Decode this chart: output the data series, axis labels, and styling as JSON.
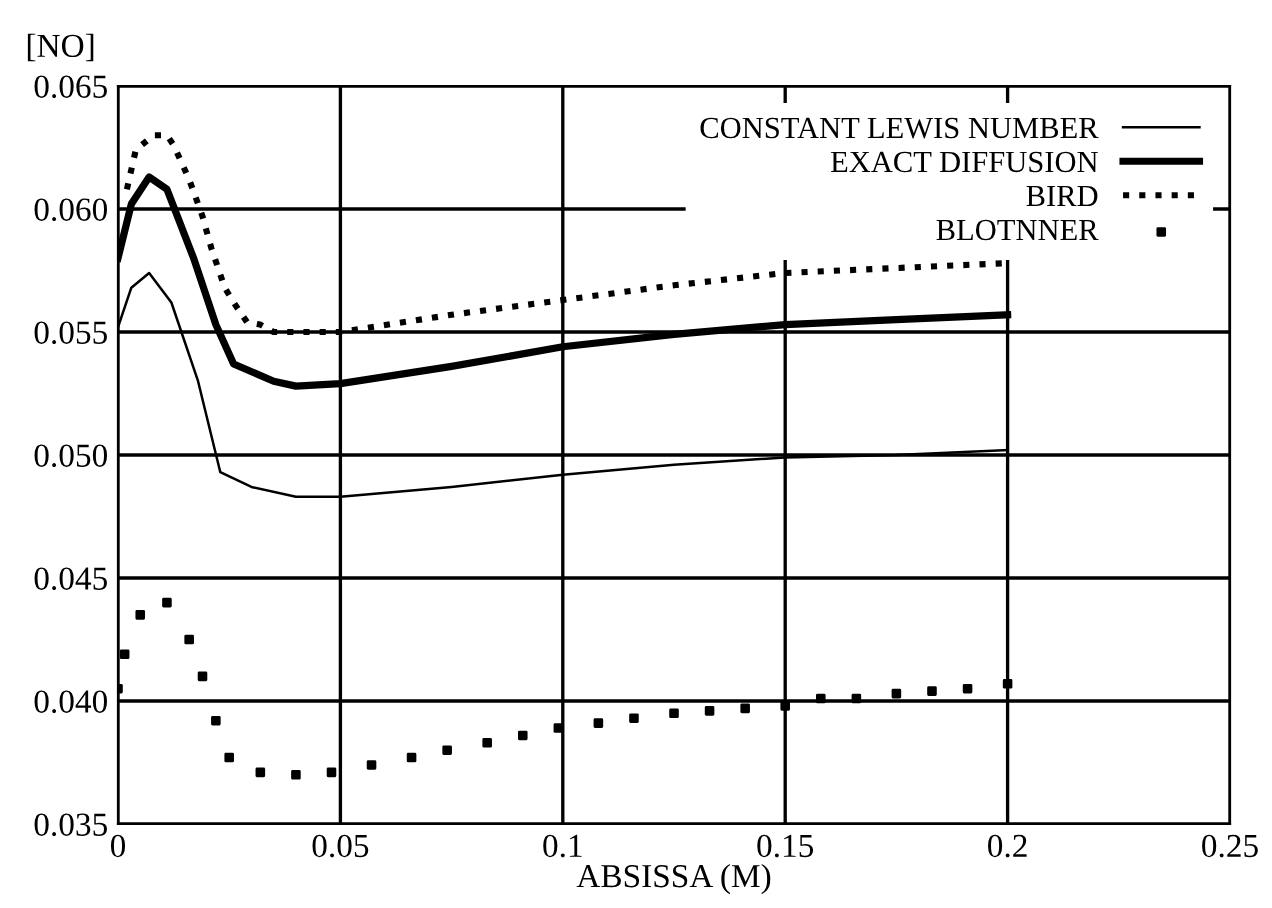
{
  "chart_data": {
    "type": "line",
    "ylabel": "[NO]",
    "xlabel": "ABSISSA (M)",
    "xlim": [
      0,
      0.25
    ],
    "xticks": [
      0,
      0.05,
      0.1,
      0.15,
      0.2,
      0.25
    ],
    "ylim": [
      0.035,
      0.065
    ],
    "yticks": [
      {
        "value": 0.035,
        "label": "0.035"
      },
      {
        "value": 0.04,
        "label": "0.040"
      },
      {
        "value": 0.045,
        "label": "0.045"
      },
      {
        "value": 0.05,
        "label": "0.050"
      },
      {
        "value": 0.055,
        "label": "0.055"
      },
      {
        "value": 0.06,
        "label": "0.060"
      },
      {
        "value": 0.065,
        "label": "0.065"
      }
    ],
    "grid": true,
    "legend": "top right",
    "series": [
      {
        "name": "CONSTANT LEWIS NUMBER",
        "color": "#000000",
        "line_style": "solid",
        "x": [
          0,
          0.003,
          0.007,
          0.012,
          0.018,
          0.023,
          0.03,
          0.04,
          0.05,
          0.075,
          0.1,
          0.125,
          0.15,
          0.175,
          0.2
        ],
        "values": [
          0.0552,
          0.0568,
          0.0574,
          0.0562,
          0.053,
          0.0493,
          0.0487,
          0.0483,
          0.0483,
          0.0487,
          0.0492,
          0.0496,
          0.0499,
          0.05,
          0.0502
        ]
      },
      {
        "name": "EXACT DIFFUSION",
        "color": "#000000",
        "line_style": "solid",
        "x": [
          0,
          0.003,
          0.007,
          0.011,
          0.017,
          0.022,
          0.026,
          0.035,
          0.04,
          0.05,
          0.075,
          0.1,
          0.125,
          0.15,
          0.175,
          0.2
        ],
        "values": [
          0.058,
          0.0602,
          0.0613,
          0.0608,
          0.058,
          0.0553,
          0.0537,
          0.053,
          0.0528,
          0.0529,
          0.0536,
          0.0544,
          0.0549,
          0.0553,
          0.0555,
          0.0557
        ]
      },
      {
        "name": "BIRD",
        "color": "#000000",
        "line_style": "dotted",
        "x": [
          0.002,
          0.004,
          0.008,
          0.011,
          0.0125,
          0.016,
          0.019,
          0.021,
          0.024,
          0.026,
          0.029,
          0.032,
          0.035,
          0.04,
          0.05,
          0.075,
          0.1,
          0.125,
          0.15,
          0.175,
          0.2
        ],
        "values": [
          0.0608,
          0.0624,
          0.063,
          0.063,
          0.0626,
          0.0612,
          0.0597,
          0.0584,
          0.0568,
          0.0562,
          0.0554,
          0.0553,
          0.055,
          0.055,
          0.055,
          0.0557,
          0.0563,
          0.0569,
          0.0574,
          0.0576,
          0.0578
        ]
      },
      {
        "name": "BLOTNNER",
        "color": "#000000",
        "type": "scatter",
        "marker": "square",
        "x": [
          0,
          0.0015,
          0.005,
          0.011,
          0.016,
          0.019,
          0.022,
          0.025,
          0.032,
          0.04,
          0.048,
          0.057,
          0.066,
          0.074,
          0.083,
          0.091,
          0.099,
          0.108,
          0.116,
          0.125,
          0.133,
          0.141,
          0.15,
          0.158,
          0.166,
          0.175,
          0.183,
          0.191,
          0.2
        ],
        "values": [
          0.0405,
          0.0419,
          0.0435,
          0.044,
          0.0425,
          0.041,
          0.0392,
          0.0377,
          0.0371,
          0.037,
          0.0371,
          0.0374,
          0.0377,
          0.038,
          0.0383,
          0.0386,
          0.0389,
          0.0391,
          0.0393,
          0.0395,
          0.0396,
          0.0397,
          0.0398,
          0.0401,
          0.0401,
          0.0403,
          0.0404,
          0.0405,
          0.0407
        ]
      }
    ]
  }
}
